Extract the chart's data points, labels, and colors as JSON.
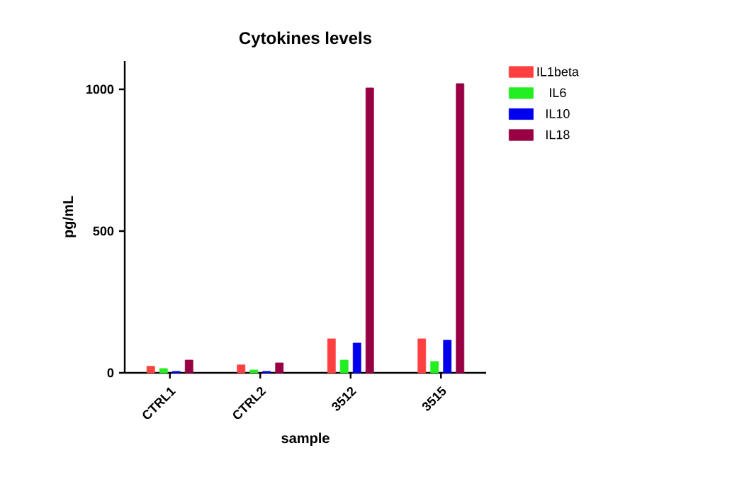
{
  "chart_data": {
    "type": "bar",
    "title": "Cytokines levels",
    "xlabel": "sample",
    "ylabel": "pg/mL",
    "categories": [
      "CTRL1",
      "CTRL2",
      "3512",
      "3515"
    ],
    "series": [
      {
        "name": "IL1beta",
        "color": "#ff4040",
        "values": [
          23,
          28,
          120,
          120
        ]
      },
      {
        "name": "IL6",
        "color": "#22ee22",
        "values": [
          15,
          10,
          45,
          40
        ]
      },
      {
        "name": "IL10",
        "color": "#0000ee",
        "values": [
          5,
          5,
          105,
          115
        ]
      },
      {
        "name": "IL18",
        "color": "#990044",
        "values": [
          45,
          35,
          1005,
          1020
        ]
      }
    ],
    "ylim": [
      0,
      1100
    ],
    "yticks": [
      0,
      500,
      1000
    ],
    "grid": false,
    "legend": "right"
  }
}
